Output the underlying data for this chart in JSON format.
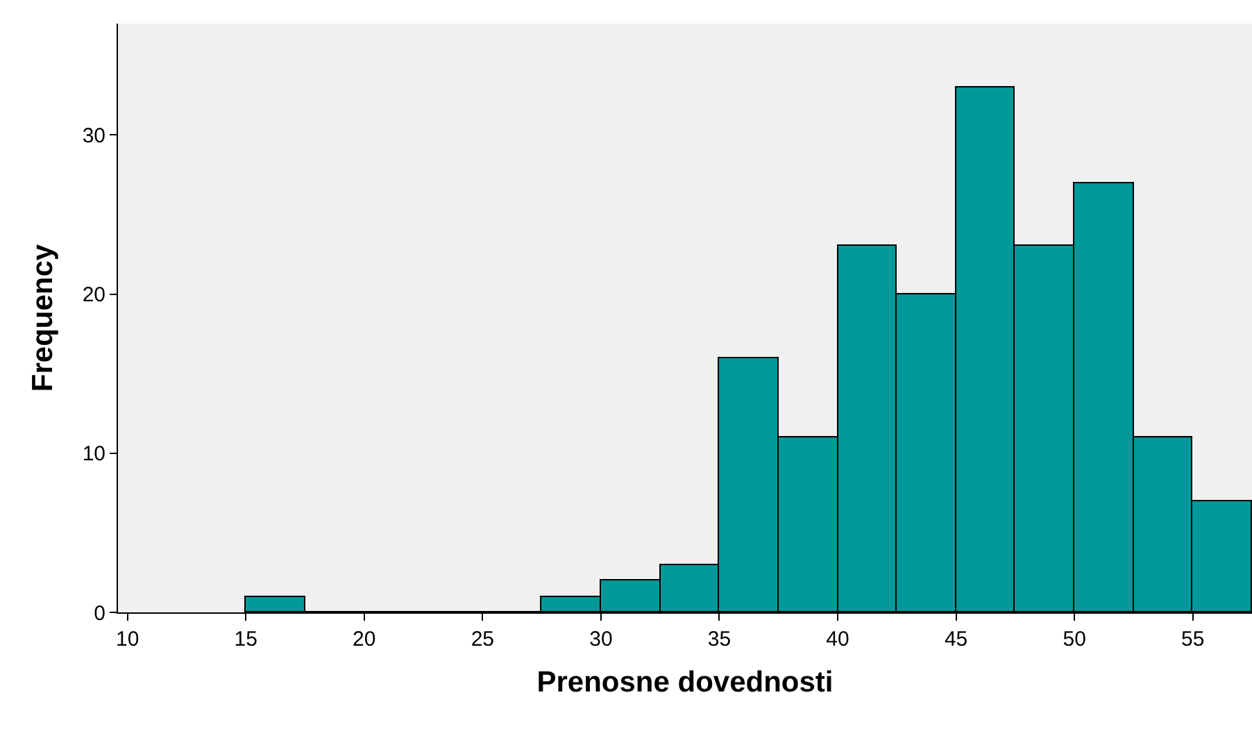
{
  "chart_data": {
    "type": "histogram",
    "xlabel": "Prenosne dovednosti",
    "ylabel": "Frequency",
    "bins": [
      15,
      17.5,
      20,
      22.5,
      25,
      27.5,
      30,
      32.5,
      35,
      37.5,
      40,
      42.5,
      45,
      47.5,
      50,
      52.5,
      55,
      57.5
    ],
    "values": [
      1,
      0,
      0,
      0,
      0,
      1,
      2,
      3,
      16,
      11,
      23,
      20,
      33,
      23,
      27,
      11,
      7
    ],
    "color": "#009999",
    "xlim": [
      9.6,
      57.5
    ],
    "xticks": [
      10,
      15,
      20,
      25,
      30,
      35,
      40,
      45,
      50,
      55
    ],
    "ylim": [
      0,
      37
    ],
    "yticks": [
      0,
      10,
      20,
      30
    ],
    "grid": false
  }
}
